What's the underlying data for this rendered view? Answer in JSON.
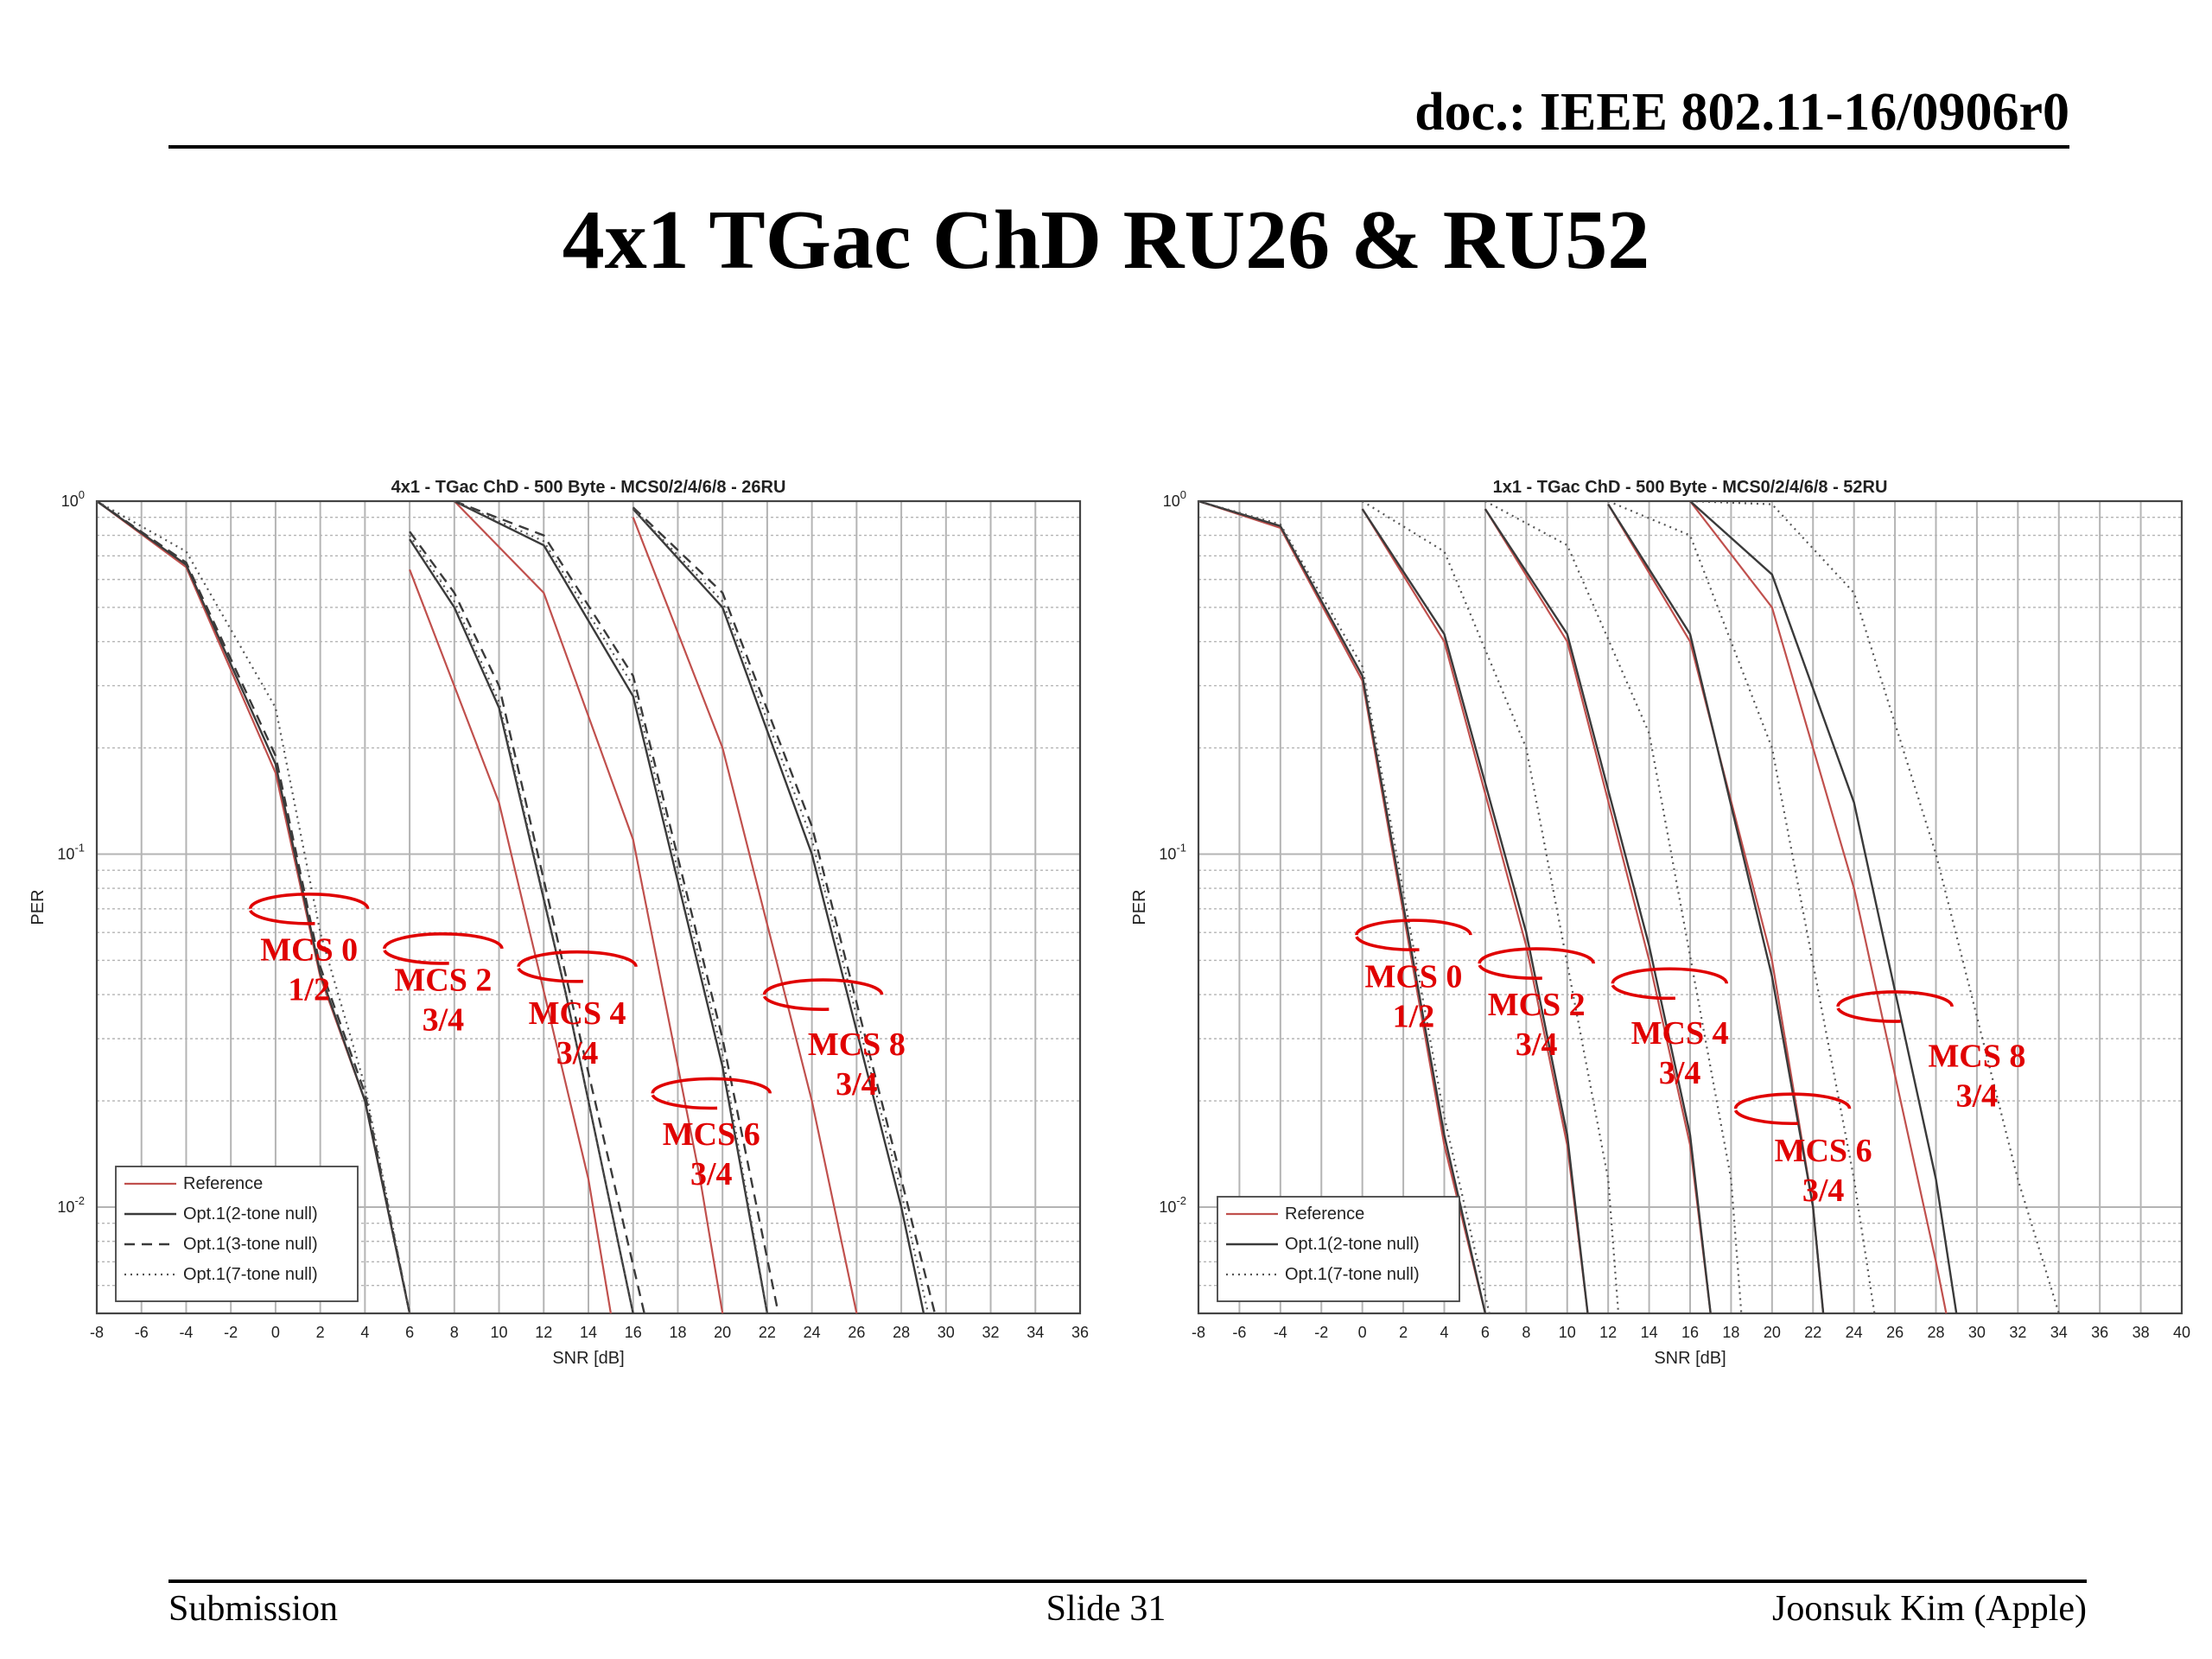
{
  "header": {
    "doc_id": "doc.: IEEE 802.11-16/0906r0",
    "slide_title": "4x1 TGac ChD RU26 & RU52"
  },
  "footer": {
    "left": "Submission",
    "center": "Slide 31",
    "right": "Joonsuk Kim (Apple)"
  },
  "colors": {
    "reference": "#c0504d",
    "option": "#3a3a3a",
    "annotation": "#e00000",
    "grid": "#b4b4b4"
  },
  "chart_data": [
    {
      "type": "line",
      "title": "4x1 - TGac ChD - 500 Byte - MCS0/2/4/6/8 - 26RU",
      "xlabel": "SNR [dB]",
      "ylabel": "PER",
      "xlim": [
        -8,
        36
      ],
      "ylim": [
        0.005,
        1
      ],
      "yscale": "log",
      "xticks": [
        -8,
        -6,
        -4,
        -2,
        0,
        2,
        4,
        6,
        8,
        10,
        12,
        14,
        16,
        18,
        20,
        22,
        24,
        26,
        28,
        30,
        32,
        34,
        36
      ],
      "yticks": [
        {
          "v": 1,
          "label": "10",
          "exp": "0"
        },
        {
          "v": 0.1,
          "label": "10",
          "exp": "-1"
        },
        {
          "v": 0.01,
          "label": "10",
          "exp": "-2"
        }
      ],
      "grid": true,
      "legend_position": "bottom-left",
      "legend": [
        {
          "name": "Reference",
          "style": "ref"
        },
        {
          "name": "Opt.1(2-tone null)",
          "style": "solid"
        },
        {
          "name": "Opt.1(3-tone null)",
          "style": "dashed"
        },
        {
          "name": "Opt.1(7-tone null)",
          "style": "dotted"
        }
      ],
      "series": [
        {
          "group": "MCS 0",
          "style": "ref",
          "points": [
            [
              -8,
              1
            ],
            [
              -4,
              0.65
            ],
            [
              0,
              0.17
            ],
            [
              2,
              0.045
            ],
            [
              4,
              0.02
            ],
            [
              6,
              0.005
            ]
          ]
        },
        {
          "group": "MCS 0",
          "style": "solid",
          "points": [
            [
              -8,
              1
            ],
            [
              -4,
              0.66
            ],
            [
              0,
              0.18
            ],
            [
              2,
              0.046
            ],
            [
              4,
              0.02
            ],
            [
              6,
              0.005
            ]
          ]
        },
        {
          "group": "MCS 0",
          "style": "dashed",
          "points": [
            [
              -8,
              1
            ],
            [
              -4,
              0.67
            ],
            [
              0,
              0.19
            ],
            [
              2,
              0.048
            ],
            [
              4,
              0.021
            ],
            [
              6,
              0.005
            ]
          ]
        },
        {
          "group": "MCS 0",
          "style": "dotted",
          "points": [
            [
              -8,
              1
            ],
            [
              -4,
              0.72
            ],
            [
              0,
              0.26
            ],
            [
              2,
              0.06
            ],
            [
              4,
              0.022
            ],
            [
              6,
              0.005
            ]
          ]
        },
        {
          "group": "MCS 2",
          "style": "ref",
          "points": [
            [
              6,
              0.64
            ],
            [
              10,
              0.14
            ],
            [
              14,
              0.012
            ],
            [
              15,
              0.005
            ]
          ]
        },
        {
          "group": "MCS 2",
          "style": "solid",
          "points": [
            [
              6,
              0.78
            ],
            [
              8,
              0.5
            ],
            [
              10,
              0.26
            ],
            [
              13,
              0.04
            ],
            [
              16,
              0.005
            ]
          ]
        },
        {
          "group": "MCS 2",
          "style": "dashed",
          "points": [
            [
              6,
              0.82
            ],
            [
              8,
              0.55
            ],
            [
              10,
              0.3
            ],
            [
              13,
              0.045
            ],
            [
              16.5,
              0.005
            ]
          ]
        },
        {
          "group": "MCS 2",
          "style": "dotted",
          "points": [
            [
              6,
              0.8
            ],
            [
              8,
              0.52
            ],
            [
              10,
              0.27
            ],
            [
              13,
              0.04
            ],
            [
              16,
              0.005
            ]
          ]
        },
        {
          "group": "MCS 4",
          "style": "ref",
          "points": [
            [
              8,
              1
            ],
            [
              12,
              0.55
            ],
            [
              16,
              0.11
            ],
            [
              19,
              0.012
            ],
            [
              20,
              0.005
            ]
          ]
        },
        {
          "group": "MCS 4",
          "style": "solid",
          "points": [
            [
              8,
              1
            ],
            [
              12,
              0.75
            ],
            [
              16,
              0.28
            ],
            [
              20,
              0.025
            ],
            [
              22,
              0.005
            ]
          ]
        },
        {
          "group": "MCS 4",
          "style": "dashed",
          "points": [
            [
              8,
              1
            ],
            [
              12,
              0.8
            ],
            [
              16,
              0.32
            ],
            [
              20,
              0.03
            ],
            [
              22.5,
              0.005
            ]
          ]
        },
        {
          "group": "MCS 4",
          "style": "dotted",
          "points": [
            [
              8,
              1
            ],
            [
              12,
              0.77
            ],
            [
              16,
              0.3
            ],
            [
              20,
              0.027
            ],
            [
              22,
              0.005
            ]
          ]
        },
        {
          "group": "MCS 6",
          "style": "ref",
          "points": [
            [
              16,
              0.9
            ],
            [
              20,
              0.2
            ],
            [
              24,
              0.02
            ],
            [
              26,
              0.005
            ]
          ]
        },
        {
          "group": "MCS 6",
          "style": "solid",
          "points": [
            [
              16,
              0.95
            ],
            [
              20,
              0.5
            ],
            [
              24,
              0.1
            ],
            [
              28,
              0.01
            ],
            [
              29,
              0.005
            ]
          ]
        },
        {
          "group": "MCS 6",
          "style": "dashed",
          "points": [
            [
              16,
              0.96
            ],
            [
              20,
              0.55
            ],
            [
              24,
              0.12
            ],
            [
              28,
              0.012
            ],
            [
              29.5,
              0.005
            ]
          ]
        },
        {
          "group": "MCS 6",
          "style": "dotted",
          "points": [
            [
              16,
              0.95
            ],
            [
              20,
              0.52
            ],
            [
              24,
              0.11
            ],
            [
              28,
              0.011
            ],
            [
              29.2,
              0.005
            ]
          ]
        }
      ],
      "annotations": [
        {
          "label": [
            "MCS 0",
            "1/2"
          ],
          "ellipse": [
            1.5,
            0.07
          ],
          "text": [
            1.5,
            0.05
          ]
        },
        {
          "label": [
            "MCS 2",
            "3/4"
          ],
          "ellipse": [
            7.5,
            0.054
          ],
          "text": [
            7.5,
            0.041
          ]
        },
        {
          "label": [
            "MCS 4",
            "3/4"
          ],
          "ellipse": [
            13.5,
            0.048
          ],
          "text": [
            13.5,
            0.033
          ]
        },
        {
          "label": [
            "MCS 6",
            "3/4"
          ],
          "ellipse": [
            19.5,
            0.021
          ],
          "text": [
            19.5,
            0.015
          ]
        },
        {
          "label": [
            "MCS 8",
            "3/4"
          ],
          "ellipse": [
            24.5,
            0.04
          ],
          "text": [
            26,
            0.027
          ]
        }
      ]
    },
    {
      "type": "line",
      "title": "1x1 - TGac ChD - 500 Byte - MCS0/2/4/6/8 - 52RU",
      "xlabel": "SNR [dB]",
      "ylabel": "PER",
      "xlim": [
        -8,
        40
      ],
      "ylim": [
        0.005,
        1
      ],
      "yscale": "log",
      "xticks": [
        -8,
        -6,
        -4,
        -2,
        0,
        2,
        4,
        6,
        8,
        10,
        12,
        14,
        16,
        18,
        20,
        22,
        24,
        26,
        28,
        30,
        32,
        34,
        36,
        38,
        40
      ],
      "yticks": [
        {
          "v": 1,
          "label": "10",
          "exp": "0"
        },
        {
          "v": 0.1,
          "label": "10",
          "exp": "-1"
        },
        {
          "v": 0.01,
          "label": "10",
          "exp": "-2"
        }
      ],
      "grid": true,
      "legend_position": "bottom-left",
      "legend": [
        {
          "name": "Reference",
          "style": "ref"
        },
        {
          "name": "Opt.1(2-tone null)",
          "style": "solid"
        },
        {
          "name": "Opt.1(7-tone null)",
          "style": "dotted"
        }
      ],
      "series": [
        {
          "group": "MCS 0",
          "style": "ref",
          "points": [
            [
              -8,
              1
            ],
            [
              -4,
              0.84
            ],
            [
              0,
              0.31
            ],
            [
              4,
              0.015
            ],
            [
              6,
              0.005
            ]
          ]
        },
        {
          "group": "MCS 0",
          "style": "solid",
          "points": [
            [
              -8,
              1
            ],
            [
              -4,
              0.85
            ],
            [
              0,
              0.32
            ],
            [
              4,
              0.016
            ],
            [
              6,
              0.005
            ]
          ]
        },
        {
          "group": "MCS 0",
          "style": "dotted",
          "points": [
            [
              -8,
              1
            ],
            [
              -4,
              0.86
            ],
            [
              0,
              0.34
            ],
            [
              4,
              0.018
            ],
            [
              6.2,
              0.005
            ]
          ]
        },
        {
          "group": "MCS 2",
          "style": "ref",
          "points": [
            [
              0,
              0.95
            ],
            [
              4,
              0.4
            ],
            [
              8,
              0.055
            ],
            [
              10,
              0.015
            ],
            [
              11,
              0.005
            ]
          ]
        },
        {
          "group": "MCS 2",
          "style": "solid",
          "points": [
            [
              0,
              0.95
            ],
            [
              4,
              0.42
            ],
            [
              8,
              0.06
            ],
            [
              10,
              0.016
            ],
            [
              11,
              0.005
            ]
          ]
        },
        {
          "group": "MCS 2",
          "style": "dotted",
          "points": [
            [
              0,
              1
            ],
            [
              4,
              0.72
            ],
            [
              8,
              0.2
            ],
            [
              12,
              0.012
            ],
            [
              12.5,
              0.005
            ]
          ]
        },
        {
          "group": "MCS 4",
          "style": "ref",
          "points": [
            [
              6,
              0.95
            ],
            [
              10,
              0.4
            ],
            [
              14,
              0.05
            ],
            [
              16,
              0.015
            ],
            [
              17,
              0.005
            ]
          ]
        },
        {
          "group": "MCS 4",
          "style": "solid",
          "points": [
            [
              6,
              0.95
            ],
            [
              10,
              0.42
            ],
            [
              14,
              0.055
            ],
            [
              16,
              0.016
            ],
            [
              17,
              0.005
            ]
          ]
        },
        {
          "group": "MCS 4",
          "style": "dotted",
          "points": [
            [
              6,
              1
            ],
            [
              10,
              0.75
            ],
            [
              14,
              0.22
            ],
            [
              18,
              0.012
            ],
            [
              18.5,
              0.005
            ]
          ]
        },
        {
          "group": "MCS 6",
          "style": "ref",
          "points": [
            [
              12,
              0.98
            ],
            [
              16,
              0.4
            ],
            [
              20,
              0.05
            ],
            [
              22,
              0.01
            ],
            [
              22.5,
              0.005
            ]
          ]
        },
        {
          "group": "MCS 6",
          "style": "solid",
          "points": [
            [
              12,
              0.98
            ],
            [
              16,
              0.42
            ],
            [
              20,
              0.045
            ],
            [
              22,
              0.01
            ],
            [
              22.5,
              0.005
            ]
          ]
        },
        {
          "group": "MCS 6",
          "style": "dotted",
          "points": [
            [
              12,
              1
            ],
            [
              16,
              0.8
            ],
            [
              20,
              0.2
            ],
            [
              24,
              0.012
            ],
            [
              25,
              0.005
            ]
          ]
        },
        {
          "group": "MCS 8",
          "style": "ref",
          "points": [
            [
              16,
              1
            ],
            [
              20,
              0.5
            ],
            [
              24,
              0.08
            ],
            [
              28,
              0.007
            ],
            [
              28.5,
              0.005
            ]
          ]
        },
        {
          "group": "MCS 8",
          "style": "solid",
          "points": [
            [
              16,
              1
            ],
            [
              20,
              0.62
            ],
            [
              24,
              0.14
            ],
            [
              28,
              0.012
            ],
            [
              29,
              0.005
            ]
          ]
        },
        {
          "group": "MCS 8",
          "style": "dotted",
          "points": [
            [
              16,
              1
            ],
            [
              20,
              0.98
            ],
            [
              24,
              0.55
            ],
            [
              28,
              0.1
            ],
            [
              32,
              0.012
            ],
            [
              34,
              0.005
            ]
          ]
        }
      ],
      "annotations": [
        {
          "label": [
            "MCS 0",
            "1/2"
          ],
          "ellipse": [
            2.5,
            0.059
          ],
          "text": [
            2.5,
            0.042
          ]
        },
        {
          "label": [
            "MCS 2",
            "3/4"
          ],
          "ellipse": [
            8.5,
            0.049
          ],
          "text": [
            8.5,
            0.035
          ]
        },
        {
          "label": [
            "MCS 4",
            "3/4"
          ],
          "ellipse": [
            15,
            0.043
          ],
          "text": [
            15.5,
            0.029
          ]
        },
        {
          "label": [
            "MCS 6",
            "3/4"
          ],
          "ellipse": [
            21,
            0.019
          ],
          "text": [
            22.5,
            0.0135
          ]
        },
        {
          "label": [
            "MCS 8",
            "3/4"
          ],
          "ellipse": [
            26,
            0.037
          ],
          "text": [
            30,
            0.025
          ]
        }
      ]
    }
  ]
}
